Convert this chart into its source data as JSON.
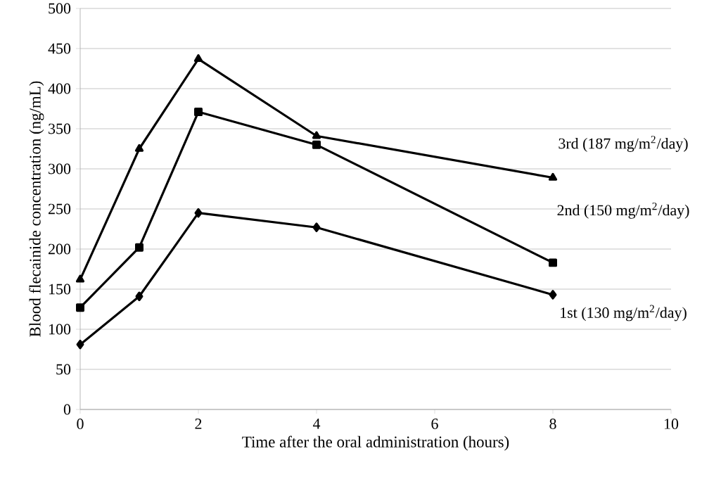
{
  "chart_data": {
    "type": "line",
    "xlabel": "Time after the oral administration (hours)",
    "ylabel": "Blood flecainide concentration (ng/mL)",
    "x": [
      0,
      1,
      2,
      4,
      8
    ],
    "series": [
      {
        "name": "3rd (187 mg/m$^{2}$/day)",
        "color": "#000000",
        "marker": "triangle",
        "values": [
          162,
          325,
          437,
          341,
          289
        ]
      },
      {
        "name": "2nd (150 mg/m$^{2}$/day)",
        "color": "#000000",
        "marker": "square",
        "values": [
          127,
          202,
          371,
          330,
          183
        ]
      },
      {
        "name": "1st (130 mg/m$^{2}$/day)",
        "color": "#000000",
        "marker": "diamond",
        "values": [
          81,
          141,
          245,
          227,
          143
        ]
      }
    ],
    "xlim": [
      0,
      10
    ],
    "xticks": [
      0,
      2,
      4,
      6,
      8,
      10
    ],
    "ylim": [
      0,
      500
    ],
    "yticks": [
      0,
      50,
      100,
      150,
      200,
      250,
      300,
      350,
      400,
      450,
      500
    ],
    "grid": "y",
    "legend": false,
    "line_style": "solid"
  }
}
